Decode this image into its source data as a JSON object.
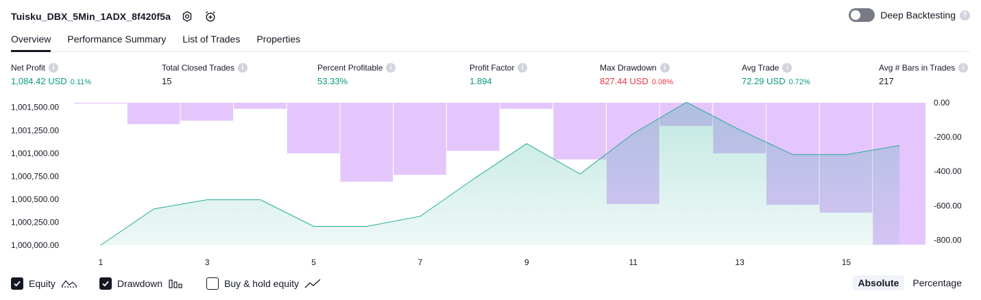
{
  "header": {
    "title": "Tuisku_DBX_5Min_1ADX_8f420f5a",
    "settings_icon": "gear-icon",
    "alert_icon": "alarm-add-icon"
  },
  "deep_backtesting": {
    "label": "Deep Backtesting",
    "enabled": false,
    "help": "?"
  },
  "tabs": [
    {
      "label": "Overview",
      "active": true
    },
    {
      "label": "Performance Summary",
      "active": false
    },
    {
      "label": "List of Trades",
      "active": false
    },
    {
      "label": "Properties",
      "active": false
    }
  ],
  "stats": [
    {
      "label": "Net Profit",
      "value": "1,084.42 USD",
      "pct": "0.11%",
      "tone": "green"
    },
    {
      "label": "Total Closed Trades",
      "value": "15",
      "pct": "",
      "tone": "dark"
    },
    {
      "label": "Percent Profitable",
      "value": "53.33%",
      "pct": "",
      "tone": "green"
    },
    {
      "label": "Profit Factor",
      "value": "1.894",
      "pct": "",
      "tone": "green"
    },
    {
      "label": "Max Drawdown",
      "value": "827.44 USD",
      "pct": "0.08%",
      "tone": "red"
    },
    {
      "label": "Avg Trade",
      "value": "72.29 USD",
      "pct": "0.72%",
      "tone": "green"
    },
    {
      "label": "Avg # Bars in Trades",
      "value": "217",
      "pct": "",
      "tone": "dark"
    }
  ],
  "chart_data": {
    "type": "line",
    "x_tick_labels": [
      "1",
      "3",
      "5",
      "7",
      "9",
      "11",
      "13",
      "15"
    ],
    "x": [
      1,
      2,
      3,
      4,
      5,
      6,
      7,
      8,
      9,
      10,
      11,
      12,
      13,
      14,
      15,
      16
    ],
    "y_left_ticks": [
      "1,001,500.00",
      "1,001,250.00",
      "1,001,000.00",
      "1,000,750.00",
      "1,000,500.00",
      "1,000,250.00",
      "1,000,000.00"
    ],
    "y_left_range": [
      1000000,
      1001550
    ],
    "y_right_ticks": [
      "0.00",
      "-200.00",
      "-400.00",
      "-600.00",
      "-800.00"
    ],
    "y_right_range": [
      -830,
      0
    ],
    "series": [
      {
        "name": "Equity",
        "type": "area",
        "color": "#22ab94",
        "values": [
          1000000,
          1000395,
          1000495,
          1000495,
          1000205,
          1000205,
          1000315,
          1000720,
          1001105,
          1000775,
          1001215,
          1001555,
          1001255,
          1000985,
          1000985,
          1001085
        ]
      },
      {
        "name": "Drawdown",
        "type": "bar",
        "color": "#e1bcfc",
        "values": [
          -5,
          -125,
          -105,
          -35,
          -295,
          -460,
          -420,
          -280,
          -35,
          -330,
          -590,
          -135,
          -295,
          -595,
          -640,
          -827
        ]
      }
    ],
    "grid": false
  },
  "footer": {
    "legend": [
      {
        "label": "Equity",
        "checked": true,
        "icon": "equity-line-icon"
      },
      {
        "label": "Drawdown",
        "checked": true,
        "icon": "drawdown-bars-icon"
      },
      {
        "label": "Buy & hold equity",
        "checked": false,
        "icon": "buy-hold-line-icon"
      }
    ],
    "modes": [
      {
        "label": "Absolute",
        "active": true
      },
      {
        "label": "Percentage",
        "active": false
      }
    ]
  }
}
